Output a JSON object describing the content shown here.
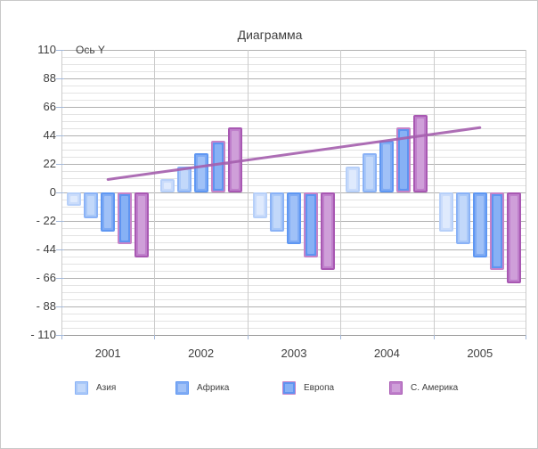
{
  "chart_data": {
    "type": "bar",
    "title": "Диаграмма",
    "y_axis_label": "Ось Y",
    "categories": [
      "2001",
      "2002",
      "2003",
      "2004",
      "2005"
    ],
    "series": [
      {
        "name": "",
        "fill": "#cadcfb",
        "border": "#b7d0f9",
        "highlight": "#dfeafd",
        "values": [
          -10,
          10,
          -20,
          20,
          -30
        ]
      },
      {
        "name": "Азия",
        "fill": "#a9c8f8",
        "border": "#8ab2f6",
        "highlight": "#c2d8fa",
        "values": [
          -20,
          20,
          -30,
          30,
          -40
        ]
      },
      {
        "name": "Африка",
        "fill": "#7fabf4",
        "border": "#5f97f2",
        "highlight": "#a0c1f7",
        "values": [
          -30,
          30,
          -40,
          40,
          -50
        ]
      },
      {
        "name": "Европа",
        "fill": "#5f94f1",
        "border": "#c583c8",
        "highlight": "#87b1f5",
        "values": [
          -40,
          40,
          -50,
          50,
          -60
        ]
      },
      {
        "name": "С. Америка",
        "fill": "#bf7fcb",
        "border": "#a858b2",
        "highlight": "#cf9fd9",
        "values": [
          -50,
          50,
          -60,
          60,
          -70
        ]
      }
    ],
    "trendline": {
      "start_category": "2001",
      "end_category": "2005",
      "start_value": 10,
      "end_value": 50,
      "color": "#a55fae"
    },
    "ylim": [
      -110,
      110
    ],
    "y_major_step": 22,
    "y_minor_step": 5.5,
    "y_tick_labels": [
      "110",
      "88",
      "66",
      "44",
      "22",
      "0",
      "- 22",
      "- 44",
      "- 66",
      "- 88",
      "- 110"
    ],
    "grid": true,
    "legend": {
      "position": "bottom",
      "items": [
        {
          "label": "Азия",
          "series_index": 1
        },
        {
          "label": "Африка",
          "series_index": 2
        },
        {
          "label": "Европа",
          "series_index": 3
        },
        {
          "label": "С. Америка",
          "series_index": 4
        }
      ]
    },
    "colors": {
      "grid_major": "#b1b1b1",
      "grid_minor": "#e3e3e3",
      "grid_vertical": "#cbcbcb",
      "axis_line": "#9b9b9b",
      "tick": "#a3b8d9",
      "text": "#3f3f3f",
      "figure_border": "#c9c9c9",
      "background": "#ffffff"
    }
  }
}
